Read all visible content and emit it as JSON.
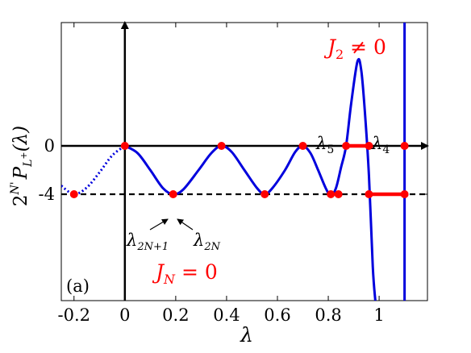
{
  "chart_data": {
    "type": "line",
    "panel_label": "(a)",
    "xlabel": "λ",
    "ylabel_parts": {
      "base": "2",
      "sup": "N'",
      "P": "P",
      "sub": "L",
      "subsup": "+",
      "arg": "(λ)"
    },
    "xlim": [
      -0.25,
      1.19
    ],
    "ylim": [
      -12.8,
      10.2
    ],
    "x_ticks": [
      {
        "value": -0.2,
        "label": "-0.2"
      },
      {
        "value": 0,
        "label": "0"
      },
      {
        "value": 0.2,
        "label": "0.2"
      },
      {
        "value": 0.4,
        "label": "0.4"
      },
      {
        "value": 0.6,
        "label": "0.6"
      },
      {
        "value": 0.8,
        "label": "0.8"
      },
      {
        "value": 1,
        "label": "1"
      }
    ],
    "y_ticks": [
      {
        "value": 0,
        "label": "0"
      },
      {
        "value": -4,
        "label": "-4"
      }
    ],
    "reference_line_y": -4,
    "curve_color": "#0000dd",
    "marker_color": "#ff0000",
    "dotted_curve": [
      {
        "x": -0.25,
        "y": -3.3
      },
      {
        "x": -0.2,
        "y": -4.0
      },
      {
        "x": -0.15,
        "y": -3.45
      },
      {
        "x": -0.1,
        "y": -2.2
      },
      {
        "x": -0.05,
        "y": -0.8
      },
      {
        "x": 0,
        "y": 0
      }
    ],
    "solid_curve": [
      {
        "x": 0,
        "y": 0
      },
      {
        "x": 0.05,
        "y": -0.6
      },
      {
        "x": 0.1,
        "y": -2.0
      },
      {
        "x": 0.15,
        "y": -3.5
      },
      {
        "x": 0.19,
        "y": -4.0
      },
      {
        "x": 0.23,
        "y": -3.6
      },
      {
        "x": 0.29,
        "y": -2.0
      },
      {
        "x": 0.34,
        "y": -0.6
      },
      {
        "x": 0.38,
        "y": 0
      },
      {
        "x": 0.42,
        "y": -0.5
      },
      {
        "x": 0.47,
        "y": -2.0
      },
      {
        "x": 0.52,
        "y": -3.5
      },
      {
        "x": 0.55,
        "y": -4.0
      },
      {
        "x": 0.58,
        "y": -3.5
      },
      {
        "x": 0.63,
        "y": -2.0
      },
      {
        "x": 0.67,
        "y": -0.5
      },
      {
        "x": 0.7,
        "y": 0
      },
      {
        "x": 0.73,
        "y": -0.6
      },
      {
        "x": 0.76,
        "y": -2.0
      },
      {
        "x": 0.79,
        "y": -3.5
      },
      {
        "x": 0.81,
        "y": -4.1
      },
      {
        "x": 0.83,
        "y": -3.5
      },
      {
        "x": 0.85,
        "y": -1.8
      },
      {
        "x": 0.87,
        "y": 0
      },
      {
        "x": 0.89,
        "y": 3.5
      },
      {
        "x": 0.915,
        "y": 7.0
      },
      {
        "x": 0.93,
        "y": 6.2
      },
      {
        "x": 0.945,
        "y": 2.5
      },
      {
        "x": 0.96,
        "y": -2.5
      },
      {
        "x": 0.975,
        "y": -10.0
      },
      {
        "x": 0.985,
        "y": -12.8
      }
    ],
    "right_branch": [
      {
        "x": 1.1,
        "y": -12.8
      },
      {
        "x": 1.1,
        "y": 10.2
      }
    ],
    "markers": [
      {
        "x": -0.2,
        "y": -4
      },
      {
        "x": 0,
        "y": 0
      },
      {
        "x": 0.19,
        "y": -4
      },
      {
        "x": 0.38,
        "y": 0
      },
      {
        "x": 0.55,
        "y": -4
      },
      {
        "x": 0.7,
        "y": 0
      },
      {
        "x": 0.81,
        "y": -4
      },
      {
        "x": 0.84,
        "y": -4
      },
      {
        "x": 0.87,
        "y": 0
      },
      {
        "x": 0.96,
        "y": 0
      },
      {
        "x": 0.96,
        "y": -4
      },
      {
        "x": 1.1,
        "y": 0
      },
      {
        "x": 1.1,
        "y": -4
      }
    ],
    "bands": [
      {
        "y": 0,
        "x1": 0.87,
        "x2": 0.96
      },
      {
        "y": -4,
        "x1": 0.96,
        "x2": 1.1
      }
    ],
    "annotations": {
      "j2": {
        "base": "J",
        "sub": "2",
        "rest": " ≠ 0"
      },
      "jn": {
        "base": "J",
        "sub": "N",
        "rest": " = 0"
      },
      "lambda5": {
        "base": "λ",
        "sub": "5"
      },
      "lambda4": {
        "base": "λ",
        "sub": "4"
      },
      "lambda2n1": {
        "base": "λ",
        "sub": "2N+1"
      },
      "lambda2n": {
        "base": "λ",
        "sub": "2N"
      }
    }
  }
}
